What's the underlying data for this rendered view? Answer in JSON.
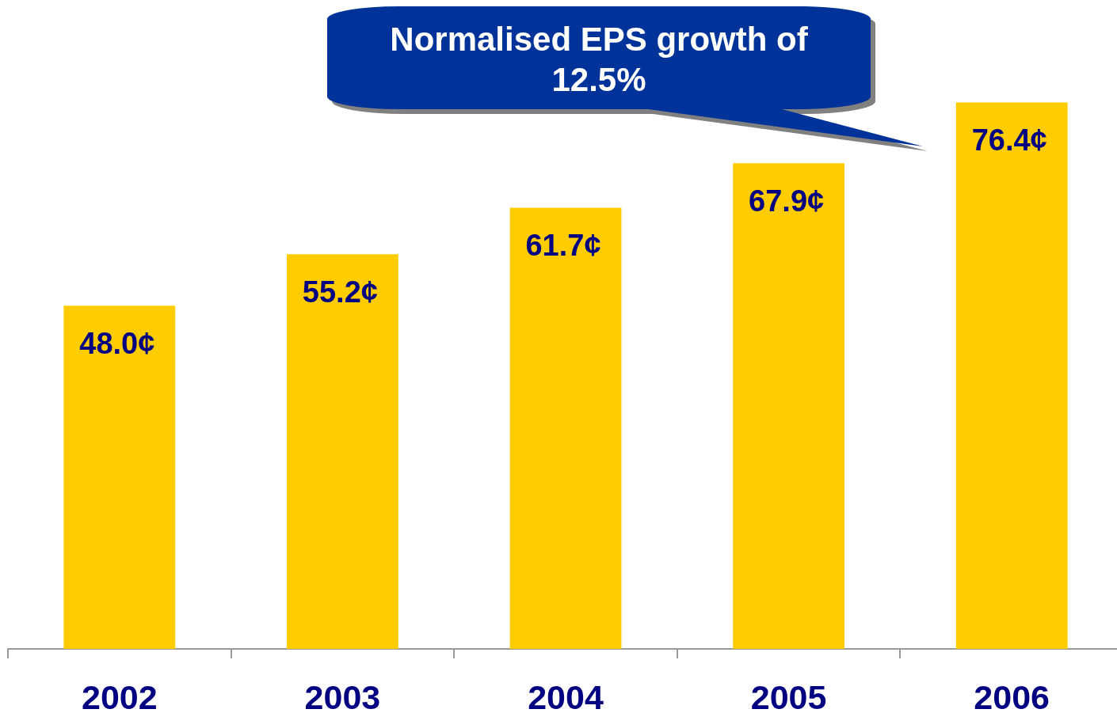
{
  "chart_data": {
    "type": "bar",
    "categories": [
      "2002",
      "2003",
      "2004",
      "2005",
      "2006"
    ],
    "values": [
      48.0,
      55.2,
      61.7,
      67.9,
      76.4
    ],
    "color": "#ffcc00",
    "value_labels": [
      "48.0¢",
      "55.2¢",
      "61.7¢",
      "67.9¢",
      "76.4¢"
    ],
    "tick_labels": "x",
    "legend": false,
    "annotations": [
      "Normalised EPS growth of 12.5%"
    ]
  }
}
